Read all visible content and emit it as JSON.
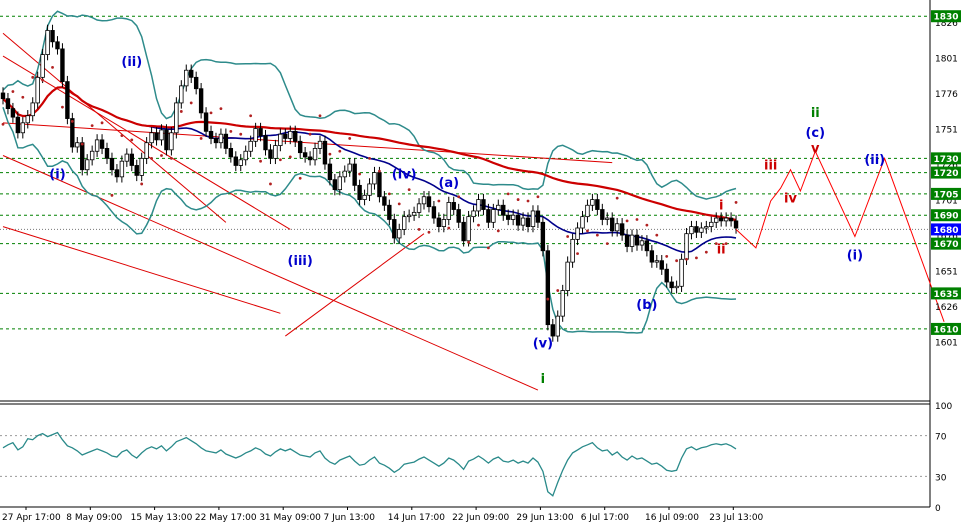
{
  "chart_data": {
    "type": "line",
    "main_panel": {
      "ylim": [
        1560,
        1840
      ],
      "price_ticks": [
        1601,
        1626,
        1651,
        1676,
        1701,
        1726,
        1751,
        1776,
        1801,
        1826
      ],
      "price_labels_over": [
        "1720",
        "1730"
      ],
      "level_lines": [
        1830,
        1730,
        1720,
        1705,
        1690,
        1670,
        1635,
        1610
      ],
      "current_price": 1680,
      "colors": {
        "level": "#008000",
        "current": "#0000ff",
        "ma_red": "#cc0000",
        "ma_blue": "#00008b",
        "band": "#2e8b8b",
        "candle": "#000000",
        "candle_up": "#ffffff",
        "sar": "#b22222"
      },
      "wave_labels": [
        {
          "text": "(ii)",
          "x": 0,
          "y": 1795,
          "color": "#0000cc"
        },
        {
          "text": "(i)",
          "x": 0,
          "y": 1716,
          "color": "#0000cc"
        },
        {
          "text": "(iii)",
          "x": 0,
          "y": 1655,
          "color": "#0000cc"
        },
        {
          "text": "(iv)",
          "x": 0,
          "y": 1716,
          "color": "#0000cc"
        },
        {
          "text": "(a)",
          "x": 0,
          "y": 1710,
          "color": "#0000cc"
        },
        {
          "text": "(v)",
          "x": 0,
          "y": 1597,
          "color": "#0000cc"
        },
        {
          "text": "(b)",
          "x": 0,
          "y": 1624,
          "color": "#0000cc"
        },
        {
          "text": "i",
          "x": 0,
          "y": 1572,
          "color": "#008000"
        },
        {
          "text": "i",
          "x": 0,
          "y": 1694,
          "color": "#cc0000"
        },
        {
          "text": "ii",
          "x": 0,
          "y": 1663,
          "color": "#cc0000"
        },
        {
          "text": "iii",
          "x": 0,
          "y": 1722,
          "color": "#cc0000"
        },
        {
          "text": "iv",
          "x": 0,
          "y": 1699,
          "color": "#cc0000"
        },
        {
          "text": "v",
          "x": 0,
          "y": 1734,
          "color": "#cc0000"
        },
        {
          "text": "ii",
          "x": 0,
          "y": 1759,
          "color": "#008000"
        },
        {
          "text": "(c)",
          "x": 0,
          "y": 1745,
          "color": "#0000cc"
        },
        {
          "text": "(ii)",
          "x": 0,
          "y": 1726,
          "color": "#0000cc"
        },
        {
          "text": "(i)",
          "x": 0,
          "y": 1659,
          "color": "#0000cc"
        }
      ],
      "projection": [
        [
          0,
          1680
        ],
        [
          4,
          1667
        ],
        [
          7,
          1700
        ],
        [
          9,
          1709
        ],
        [
          11,
          1722
        ],
        [
          13,
          1707
        ],
        [
          16,
          1735
        ],
        [
          24,
          1675
        ],
        [
          30,
          1730
        ],
        [
          42,
          1615
        ]
      ],
      "trendlines": [
        [
          [
            0,
            1818
          ],
          [
            45,
            1685
          ]
        ],
        [
          [
            0,
            1682
          ],
          [
            56,
            1621
          ]
        ],
        [
          [
            0,
            1802
          ],
          [
            58,
            1680
          ]
        ],
        [
          [
            0,
            1755
          ],
          [
            123,
            1727
          ]
        ],
        [
          [
            0,
            1732
          ],
          [
            108,
            1567
          ]
        ],
        [
          [
            57,
            1605
          ],
          [
            85,
            1677
          ]
        ]
      ],
      "price_series": [
        1772,
        1765,
        1759,
        1748,
        1755,
        1760,
        1769,
        1787,
        1803,
        1820,
        1812,
        1807,
        1784,
        1758,
        1738,
        1741,
        1722,
        1729,
        1735,
        1743,
        1737,
        1730,
        1722,
        1717,
        1728,
        1733,
        1725,
        1718,
        1730,
        1741,
        1748,
        1743,
        1750,
        1736,
        1748,
        1769,
        1781,
        1792,
        1787,
        1779,
        1762,
        1749,
        1744,
        1741,
        1747,
        1737,
        1731,
        1725,
        1729,
        1735,
        1742,
        1751,
        1746,
        1736,
        1730,
        1739,
        1747,
        1744,
        1749,
        1742,
        1734,
        1731,
        1729,
        1737,
        1742,
        1726,
        1715,
        1708,
        1717,
        1721,
        1726,
        1711,
        1701,
        1704,
        1712,
        1720,
        1703,
        1697,
        1687,
        1674,
        1680,
        1689,
        1690,
        1692,
        1698,
        1703,
        1696,
        1688,
        1682,
        1687,
        1699,
        1694,
        1685,
        1672,
        1689,
        1693,
        1701,
        1694,
        1685,
        1694,
        1697,
        1690,
        1687,
        1690,
        1683,
        1688,
        1682,
        1693,
        1685,
        1665,
        1613,
        1605,
        1619,
        1637,
        1657,
        1673,
        1681,
        1689,
        1697,
        1701,
        1694,
        1687,
        1688,
        1679,
        1684,
        1676,
        1668,
        1676,
        1669,
        1672,
        1665,
        1657,
        1658,
        1652,
        1643,
        1639,
        1640,
        1659,
        1677,
        1682,
        1678,
        1681,
        1682,
        1685,
        1688,
        1686,
        1688,
        1686,
        1681
      ]
    },
    "rsi_panel": {
      "ylim": [
        0,
        100
      ],
      "ticks": [
        0,
        30,
        70,
        100
      ],
      "series": [
        58,
        61,
        63,
        56,
        59,
        67,
        66,
        70,
        72,
        69,
        71,
        73,
        66,
        60,
        58,
        55,
        51,
        53,
        55,
        57,
        55,
        53,
        50,
        49,
        54,
        56,
        51,
        48,
        53,
        57,
        59,
        57,
        60,
        55,
        59,
        64,
        66,
        68,
        65,
        62,
        58,
        55,
        54,
        53,
        56,
        52,
        50,
        48,
        50,
        53,
        55,
        58,
        56,
        52,
        50,
        54,
        57,
        55,
        57,
        54,
        51,
        50,
        49,
        53,
        55,
        48,
        44,
        42,
        46,
        48,
        50,
        45,
        41,
        42,
        46,
        49,
        43,
        41,
        38,
        34,
        37,
        42,
        43,
        44,
        47,
        49,
        46,
        43,
        40,
        43,
        48,
        46,
        42,
        37,
        45,
        47,
        50,
        47,
        43,
        47,
        49,
        45,
        44,
        46,
        43,
        45,
        43,
        48,
        44,
        35,
        15,
        11,
        24,
        36,
        46,
        53,
        56,
        59,
        61,
        63,
        58,
        55,
        56,
        51,
        54,
        49,
        46,
        50,
        47,
        48,
        45,
        42,
        43,
        40,
        36,
        35,
        36,
        48,
        57,
        59,
        56,
        58,
        59,
        61,
        62,
        61,
        62,
        60,
        57
      ]
    },
    "x_labels": [
      "27 Apr 17:00",
      "8 May 09:00",
      "15 May 13:00",
      "22 May 17:00",
      "31 May 09:00",
      "7 Jun 13:00",
      "14 Jun 17:00",
      "22 Jun 09:00",
      "29 Jun 13:00",
      "6 Jul 17:00",
      "16 Jul 09:00",
      "23 Jul 13:00"
    ]
  }
}
